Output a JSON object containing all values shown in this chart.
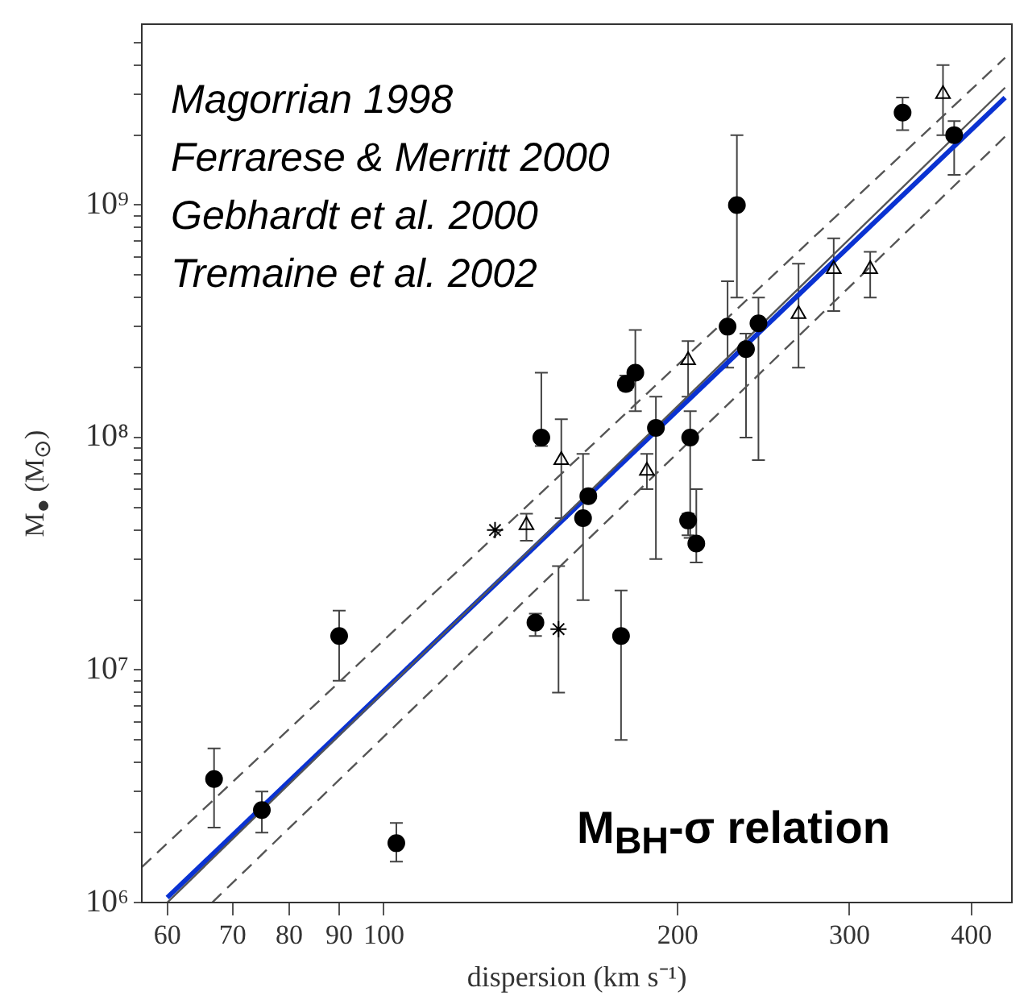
{
  "chart_data": {
    "type": "scatter",
    "xlabel": "dispersion (km s⁻¹)",
    "ylabel": "M$_{●}$ (M$_{⊙}$)",
    "log": "xy",
    "grid": false,
    "legend": false,
    "xlim": [
      56.5,
      440
    ],
    "ylim": [
      1000000,
      6000000000
    ],
    "xticks": [
      60,
      70,
      80,
      90,
      100,
      200,
      300,
      400
    ],
    "yticks": [
      {
        "value": 1000000,
        "label": "10⁶"
      },
      {
        "value": 2000000,
        "label": null
      },
      {
        "value": 3000000,
        "label": null
      },
      {
        "value": 4000000,
        "label": null
      },
      {
        "value": 5000000,
        "label": null
      },
      {
        "value": 6000000,
        "label": null
      },
      {
        "value": 7000000,
        "label": null
      },
      {
        "value": 8000000,
        "label": null
      },
      {
        "value": 9000000,
        "label": null
      },
      {
        "value": 10000000,
        "label": "10⁷"
      },
      {
        "value": 20000000,
        "label": null
      },
      {
        "value": 30000000,
        "label": null
      },
      {
        "value": 40000000,
        "label": null
      },
      {
        "value": 50000000,
        "label": null
      },
      {
        "value": 60000000,
        "label": null
      },
      {
        "value": 70000000,
        "label": null
      },
      {
        "value": 80000000,
        "label": null
      },
      {
        "value": 90000000,
        "label": null
      },
      {
        "value": 100000000,
        "label": "10⁸"
      },
      {
        "value": 200000000,
        "label": null
      },
      {
        "value": 300000000,
        "label": null
      },
      {
        "value": 400000000,
        "label": null
      },
      {
        "value": 500000000,
        "label": null
      },
      {
        "value": 600000000,
        "label": null
      },
      {
        "value": 700000000,
        "label": null
      },
      {
        "value": 800000000,
        "label": null
      },
      {
        "value": 900000000,
        "label": null
      },
      {
        "value": 1000000000,
        "label": "10⁹"
      },
      {
        "value": 2000000000,
        "label": null
      },
      {
        "value": 3000000000,
        "label": null
      },
      {
        "value": 4000000000,
        "label": null
      },
      {
        "value": 5000000000,
        "label": null
      }
    ],
    "annotations": [
      "Magorrian 1998",
      "Ferrarese & Merritt 2000",
      "Gebhardt et al. 2000",
      "Tremaine et al. 2002",
      "M$_{BH}$-σ relation"
    ],
    "series": [
      {
        "marker": "circle",
        "color": "#000000",
        "x": [
          67,
          143,
          175,
          209,
          162,
          145,
          177,
          181,
          190,
          206,
          230,
          235,
          242,
          384
        ],
        "values": [
          3400000,
          16000000,
          14000000,
          35000000,
          56000000,
          100000000,
          170000000,
          190000000,
          110000000,
          100000000,
          1000000000,
          240000000,
          310000000,
          2000000000
        ],
        "errors": [
          [
            2100000,
            4600000
          ],
          [
            14000000,
            17500000
          ],
          [
            5000000,
            22000000
          ],
          [
            29000000,
            60000000
          ],
          null,
          [
            92000000,
            190000000
          ],
          [
            160000000,
            185000000
          ],
          [
            130000000,
            290000000
          ],
          [
            30000000,
            150000000
          ],
          [
            37000000,
            130000000
          ],
          [
            400000000,
            2000000000
          ],
          [
            100000000,
            280000000
          ],
          [
            80000000,
            400000000
          ],
          [
            1350000000,
            2300000000
          ]
        ]
      },
      {
        "marker": "circle",
        "color": "#000000",
        "x": [
          75,
          90,
          103,
          160,
          205,
          225,
          340
        ],
        "values": [
          2500000,
          14000000,
          1800000,
          45000000,
          44000000,
          300000000,
          2500000000
        ],
        "errors": [
          [
            2000000,
            3000000
          ],
          [
            9000000,
            18000000
          ],
          [
            1500000,
            2200000
          ],
          [
            20000000,
            85000000
          ],
          [
            38000000,
            47000000
          ],
          [
            200000000,
            470000000
          ],
          [
            2100000000,
            2900000000
          ]
        ]
      },
      {
        "marker": "triangle",
        "color": "#000000",
        "x": [
          140,
          152,
          186,
          205,
          266,
          289,
          315,
          374
        ],
        "values": [
          42000000,
          80000000,
          72000000,
          215000000,
          340000000,
          530000000,
          530000000,
          3000000000
        ],
        "errors": [
          [
            36000000,
            47000000
          ],
          [
            45000000,
            120000000
          ],
          [
            60000000,
            85000000
          ],
          [
            150000000,
            260000000
          ],
          [
            200000000,
            560000000
          ],
          [
            350000000,
            720000000
          ],
          [
            400000000,
            630000000
          ],
          [
            2000000000,
            4000000000
          ]
        ]
      },
      {
        "marker": "cross",
        "color": "#000000",
        "x": [
          130,
          151
        ],
        "values": [
          40000000,
          15000000
        ],
        "errors": [
          null,
          [
            8000000,
            28000000
          ]
        ]
      },
      {
        "type": "line",
        "color": "#555555",
        "line_style": "solid",
        "x": [
          60,
          433
        ],
        "values": [
          1000000,
          3200000000
        ]
      },
      {
        "type": "line",
        "color": "#555555",
        "line_style": "dashed",
        "x": [
          56.5,
          433
        ],
        "values": [
          1420000,
          4300000000
        ]
      },
      {
        "type": "line",
        "color": "#555555",
        "line_style": "dashed",
        "x": [
          66.7,
          433
        ],
        "values": [
          1000000,
          1970000000
        ]
      },
      {
        "type": "line",
        "color": "#0a32d2",
        "line_style": "solid",
        "x": [
          60,
          433
        ],
        "values": [
          1050000,
          2900000000
        ]
      }
    ]
  }
}
